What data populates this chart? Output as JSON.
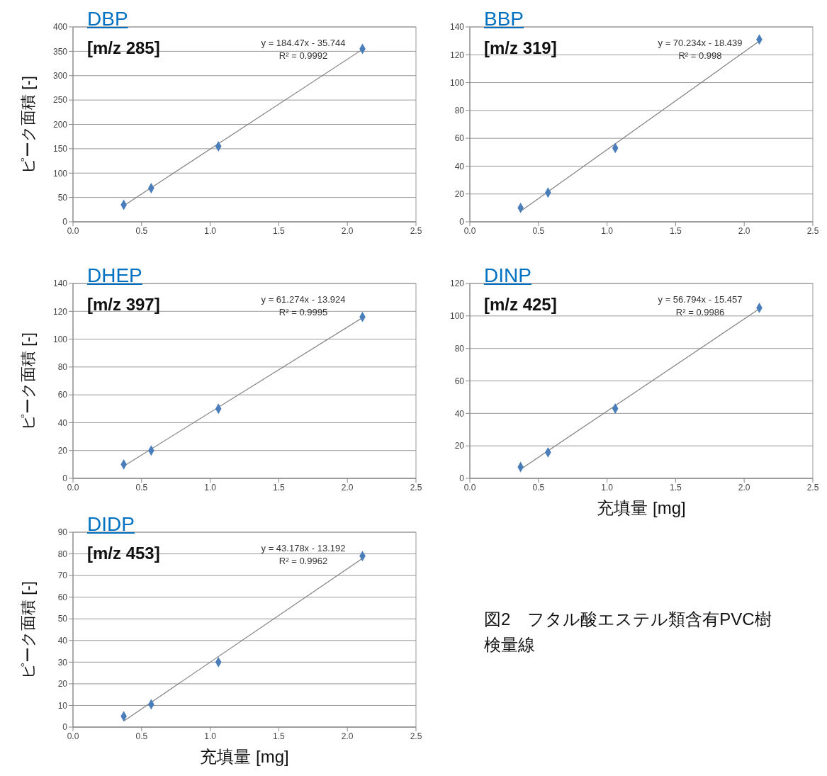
{
  "chart_data": [
    {
      "type": "scatter",
      "title": "DBP",
      "subtitle": "[m/z 285]",
      "ylabel": "ピーク面積 [-]",
      "annotations": [
        "y = 184.47x - 35.744",
        "R² = 0.9992"
      ],
      "xlim": [
        0,
        2.5
      ],
      "xticks": [
        {
          "value": 0,
          "label": "0.0"
        },
        {
          "value": 0.5,
          "label": "0.5"
        },
        {
          "value": 1,
          "label": "1.0"
        },
        {
          "value": 1.5,
          "label": "1.5"
        },
        {
          "value": 2,
          "label": "2.0"
        },
        {
          "value": 2.5,
          "label": "2.5"
        }
      ],
      "ylim": [
        0,
        400
      ],
      "yticks": [
        0,
        50,
        100,
        150,
        200,
        250,
        300,
        350,
        400
      ],
      "grid": "y",
      "series": [
        {
          "type": "scatter",
          "color": "#4a7ebb",
          "marker": "diamond",
          "x": [
            0.37,
            0.57,
            1.06,
            2.11
          ],
          "values": [
            35,
            69,
            155,
            355
          ]
        },
        {
          "type": "line",
          "color": "#808080",
          "marker": "none",
          "x": [
            0.37,
            2.11
          ],
          "values": [
            33,
            354
          ]
        }
      ]
    },
    {
      "type": "scatter",
      "title": "BBP",
      "subtitle": "[m/z 319]",
      "annotations": [
        "y = 70.234x - 18.439",
        "R² = 0.998"
      ],
      "xlim": [
        0,
        2.5
      ],
      "xticks": [
        {
          "value": 0,
          "label": "0.0"
        },
        {
          "value": 0.5,
          "label": "0.5"
        },
        {
          "value": 1,
          "label": "1.0"
        },
        {
          "value": 1.5,
          "label": "1.5"
        },
        {
          "value": 2,
          "label": "2.0"
        },
        {
          "value": 2.5,
          "label": "2.5"
        }
      ],
      "ylim": [
        0,
        140
      ],
      "yticks": [
        0,
        20,
        40,
        60,
        80,
        100,
        120,
        140
      ],
      "grid": "y",
      "series": [
        {
          "type": "scatter",
          "color": "#4a7ebb",
          "marker": "diamond",
          "x": [
            0.37,
            0.57,
            1.06,
            2.11
          ],
          "values": [
            10,
            21,
            53,
            131
          ]
        },
        {
          "type": "line",
          "color": "#808080",
          "marker": "none",
          "x": [
            0.37,
            2.11
          ],
          "values": [
            7.6,
            129.8
          ]
        }
      ]
    },
    {
      "type": "scatter",
      "title": "DHEP",
      "subtitle": "[m/z 397]",
      "ylabel": "ピーク面積 [-]",
      "annotations": [
        "y = 61.274x - 13.924",
        "R² = 0.9995"
      ],
      "xlim": [
        0,
        2.5
      ],
      "xticks": [
        {
          "value": 0,
          "label": "0.0"
        },
        {
          "value": 0.5,
          "label": "0.5"
        },
        {
          "value": 1,
          "label": "1.0"
        },
        {
          "value": 1.5,
          "label": "1.5"
        },
        {
          "value": 2,
          "label": "2.0"
        },
        {
          "value": 2.5,
          "label": "2.5"
        }
      ],
      "ylim": [
        0,
        140
      ],
      "yticks": [
        0,
        20,
        40,
        60,
        80,
        100,
        120,
        140
      ],
      "grid": "y",
      "series": [
        {
          "type": "scatter",
          "color": "#4a7ebb",
          "marker": "diamond",
          "x": [
            0.37,
            0.57,
            1.06,
            2.11
          ],
          "values": [
            10,
            20,
            50,
            116
          ]
        },
        {
          "type": "line",
          "color": "#808080",
          "marker": "none",
          "x": [
            0.37,
            2.11
          ],
          "values": [
            8.8,
            115.4
          ]
        }
      ]
    },
    {
      "type": "scatter",
      "title": "DINP",
      "subtitle": "[m/z 425]",
      "xlabel": "充填量 [mg]",
      "annotations": [
        "y = 56.794x - 15.457",
        "R² = 0.9986"
      ],
      "xlim": [
        0,
        2.5
      ],
      "xticks": [
        {
          "value": 0,
          "label": "0.0"
        },
        {
          "value": 0.5,
          "label": "0.5"
        },
        {
          "value": 1,
          "label": "1.0"
        },
        {
          "value": 1.5,
          "label": "1.5"
        },
        {
          "value": 2,
          "label": "2.0"
        },
        {
          "value": 2.5,
          "label": "2.5"
        }
      ],
      "ylim": [
        0,
        120
      ],
      "yticks": [
        0,
        20,
        40,
        60,
        80,
        100,
        120
      ],
      "grid": "y",
      "series": [
        {
          "type": "scatter",
          "color": "#4a7ebb",
          "marker": "diamond",
          "x": [
            0.37,
            0.57,
            1.06,
            2.11
          ],
          "values": [
            7,
            16,
            43,
            105
          ]
        },
        {
          "type": "line",
          "color": "#808080",
          "marker": "none",
          "x": [
            0.37,
            2.11
          ],
          "values": [
            5.6,
            104.4
          ]
        }
      ]
    },
    {
      "type": "scatter",
      "title": "DIDP",
      "subtitle": "[m/z 453]",
      "xlabel": "充填量 [mg]",
      "ylabel": "ピーク面積 [-]",
      "annotations": [
        "y = 43.178x - 13.192",
        "R² = 0.9962"
      ],
      "xlim": [
        0,
        2.5
      ],
      "xticks": [
        {
          "value": 0,
          "label": "0.0"
        },
        {
          "value": 0.5,
          "label": "0.5"
        },
        {
          "value": 1,
          "label": "1.0"
        },
        {
          "value": 1.5,
          "label": "1.5"
        },
        {
          "value": 2,
          "label": "2.0"
        },
        {
          "value": 2.5,
          "label": "2.5"
        }
      ],
      "ylim": [
        0,
        90
      ],
      "yticks": [
        0,
        10,
        20,
        30,
        40,
        50,
        60,
        70,
        80,
        90
      ],
      "grid": "y",
      "series": [
        {
          "type": "scatter",
          "color": "#4a7ebb",
          "marker": "diamond",
          "x": [
            0.37,
            0.57,
            1.06,
            2.11
          ],
          "values": [
            5,
            10.5,
            30,
            79
          ]
        },
        {
          "type": "line",
          "color": "#808080",
          "marker": "none",
          "x": [
            0.37,
            2.11
          ],
          "values": [
            2.8,
            77.9
          ]
        }
      ]
    },
    {
      "type": "other",
      "annotations": [
        "図2　フタル酸エステル類含有PVC樹",
        "検量線"
      ]
    }
  ]
}
